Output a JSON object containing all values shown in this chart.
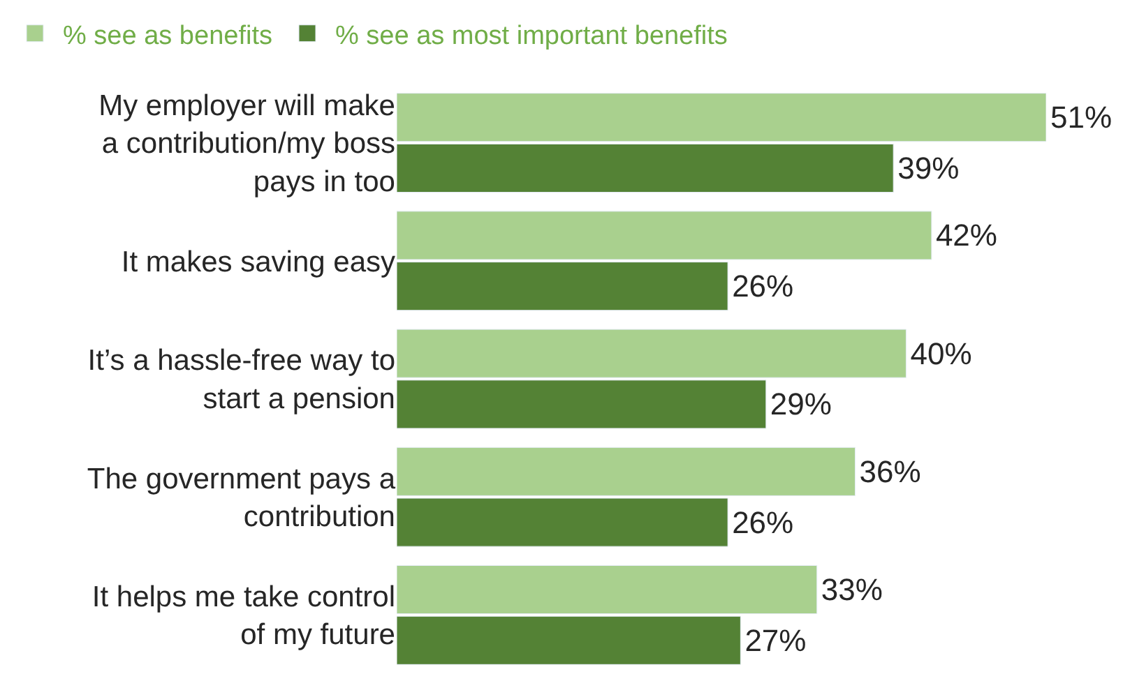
{
  "chart_data": {
    "type": "bar",
    "orientation": "horizontal",
    "legend": "top left",
    "categories": [
      "My employer will make\na contribution/my boss\npays in too",
      "It makes saving easy",
      "It’s a hassle-free way to\nstart a pension",
      "The government pays a\ncontribution",
      "It helps me take control\nof my future"
    ],
    "series": [
      {
        "name": "% see as benefits",
        "color": "#a9d08e",
        "values": [
          51,
          42,
          40,
          36,
          33
        ],
        "value_labels": [
          "51%",
          "42%",
          "40%",
          "36%",
          "33%"
        ]
      },
      {
        "name": "% see as most important benefits",
        "color": "#548235",
        "values": [
          39,
          26,
          29,
          26,
          27
        ],
        "value_labels": [
          "39%",
          "26%",
          "29%",
          "26%",
          "27%"
        ]
      }
    ]
  }
}
